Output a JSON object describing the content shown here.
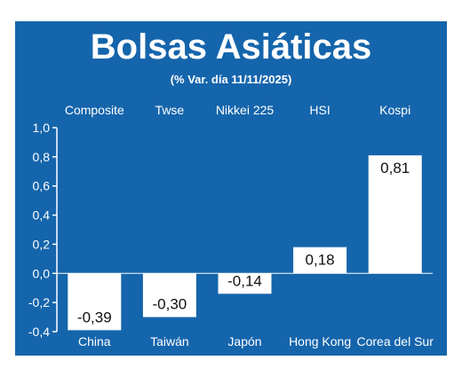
{
  "colors": {
    "background": "#1565ac",
    "bar": "#ffffff",
    "text": "#ffffff",
    "value_text": "#111111",
    "rule": "#ffffff"
  },
  "chart_data": {
    "type": "bar",
    "title": "Bolsas Asiáticas",
    "subtitle": "(% Var. día  11/11/2025)",
    "index_labels": [
      "Composite",
      "Twse",
      "Nikkei 225",
      "HSI",
      "Kospi"
    ],
    "categories": [
      "China",
      "Taiwán",
      "Japón",
      "Hong Kong",
      "Corea del Sur"
    ],
    "values": [
      -0.39,
      -0.3,
      -0.14,
      0.18,
      0.81
    ],
    "value_labels": [
      "-0,39",
      "-0,30",
      "-0,14",
      "0,18",
      "0,81"
    ],
    "ylim": [
      -0.4,
      1.0
    ],
    "yticks": [
      1.0,
      0.8,
      0.6,
      0.4,
      0.2,
      0.0,
      -0.2,
      -0.4
    ],
    "ytick_labels": [
      "1,0",
      "0,8",
      "0,6",
      "0,4",
      "0,2",
      "0,0",
      "-0,2",
      "-0,4"
    ],
    "grid": false,
    "legend": "none"
  }
}
